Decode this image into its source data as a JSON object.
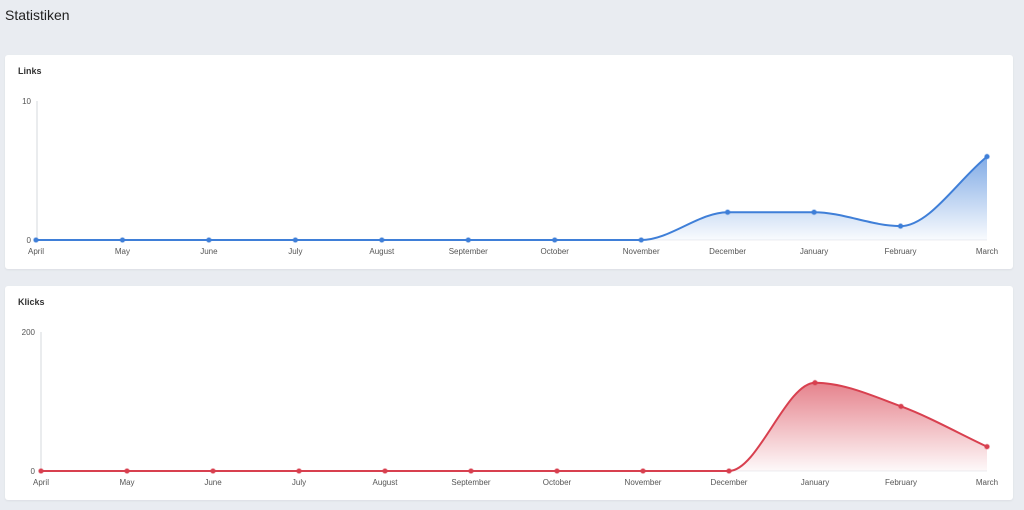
{
  "page": {
    "title": "Statistiken"
  },
  "chart_data": [
    {
      "type": "area",
      "title": "Links",
      "categories": [
        "April",
        "May",
        "June",
        "July",
        "August",
        "September",
        "October",
        "November",
        "December",
        "January",
        "February",
        "March"
      ],
      "series": [
        {
          "values": [
            0,
            0,
            0,
            0,
            0,
            0,
            0,
            0,
            2,
            2,
            1,
            6
          ]
        }
      ],
      "ylim": [
        0,
        10
      ],
      "yticks": [
        0,
        10
      ],
      "grid": false,
      "legend": "none",
      "color": "#3f7fd8"
    },
    {
      "type": "area",
      "title": "Klicks",
      "categories": [
        "April",
        "May",
        "June",
        "July",
        "August",
        "September",
        "October",
        "November",
        "December",
        "January",
        "February",
        "March"
      ],
      "series": [
        {
          "values": [
            0,
            0,
            0,
            0,
            0,
            0,
            0,
            0,
            0,
            127,
            93,
            35
          ]
        }
      ],
      "ylim": [
        0,
        200
      ],
      "yticks": [
        0,
        200
      ],
      "grid": false,
      "legend": "none",
      "color": "#d8404f"
    }
  ]
}
